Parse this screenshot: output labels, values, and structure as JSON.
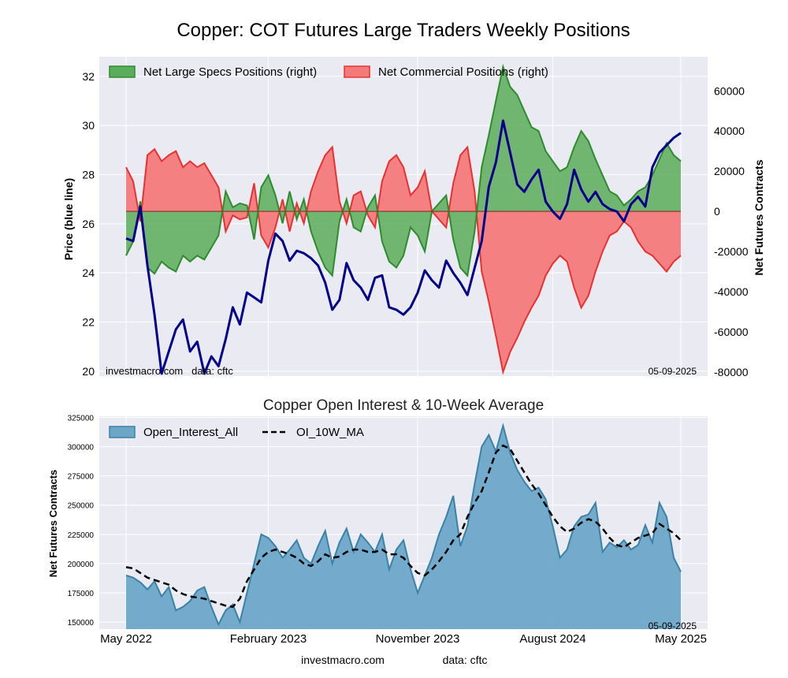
{
  "title": "Copper: COT Futures Large Traders Weekly Positions",
  "footer": {
    "left": "investmacro.com",
    "right": "data: cftc"
  },
  "colors": {
    "bg": "#eaeaf2",
    "grid": "#ffffff",
    "price": "#00008b",
    "specs_fill": "#5aad5a",
    "specs_line": "#2e8b2e",
    "comm_fill": "#f47a7a",
    "comm_line": "#e63232",
    "oi_fill": "#6ea6c8",
    "oi_line": "#3a82a6",
    "ma": "#000000"
  },
  "chart_data": [
    {
      "type": "line+area",
      "title": "Copper: COT Futures Large Traders Weekly Positions",
      "ylabel_left": "Price (blue line)",
      "ylabel_right": "Net Futures Contracts",
      "watermark": "investmacro.com   data: cftc",
      "date_label": "05-09-2025",
      "ylim_left": [
        19.8,
        32.8
      ],
      "ylim_right": [
        -82000,
        77000
      ],
      "yticks_left": [
        "20",
        "22",
        "24",
        "26",
        "28",
        "30",
        "32"
      ],
      "yticks_right": [
        "-80000",
        "-60000",
        "-40000",
        "-20000",
        "0",
        "20000",
        "40000",
        "60000"
      ],
      "legend": [
        "Net Large Specs Positions (right)",
        "Net Commercial Positions (right)"
      ],
      "legend_position": "top-left",
      "x": [
        0,
        2,
        4,
        6,
        8,
        10,
        12,
        14,
        16,
        18,
        20,
        22,
        24,
        26,
        28,
        30,
        32,
        34,
        36,
        38,
        40,
        42,
        44,
        46,
        48,
        50,
        52,
        54,
        56,
        58,
        60,
        62,
        64,
        66,
        68,
        70,
        72,
        74,
        76,
        78,
        80,
        82,
        84,
        86,
        88,
        90,
        92,
        94,
        96,
        98,
        100,
        102,
        104,
        106,
        108,
        110,
        112,
        114,
        116,
        118,
        120,
        122,
        124,
        126,
        128,
        130,
        132,
        134,
        136,
        138,
        140,
        142,
        144,
        146,
        148,
        150,
        152,
        154,
        156
      ],
      "series": [
        {
          "name": "Price",
          "axis": "left",
          "values": [
            25.4,
            25.3,
            26.7,
            24.3,
            22.3,
            19.9,
            20.8,
            21.7,
            22.1,
            20.8,
            21.2,
            19.9,
            20.6,
            20.2,
            21.3,
            22.6,
            21.9,
            23.2,
            23.0,
            22.8,
            24.5,
            25.6,
            25.3,
            24.5,
            24.9,
            24.8,
            24.6,
            24.3,
            23.6,
            22.5,
            22.9,
            24.4,
            23.7,
            23.4,
            22.9,
            23.8,
            23.9,
            22.6,
            22.5,
            22.3,
            22.6,
            23.2,
            24.1,
            23.7,
            23.4,
            24.5,
            24.0,
            23.6,
            23.1,
            24.2,
            25.3,
            27.5,
            28.5,
            30.2,
            28.9,
            27.6,
            27.3,
            27.8,
            28.2,
            26.9,
            26.5,
            26.2,
            26.8,
            28.2,
            27.4,
            26.9,
            27.3,
            26.8,
            26.6,
            26.5,
            26.1,
            26.8,
            27.1,
            26.7,
            28.3,
            28.9,
            29.2,
            29.5,
            29.7
          ],
          "note": "approximate"
        },
        {
          "name": "Net Large Specs Positions (right)",
          "axis": "right",
          "values": [
            -22000,
            -15000,
            5000,
            -28000,
            -31000,
            -25000,
            -28000,
            -30000,
            -22000,
            -25000,
            -22000,
            -24000,
            -18000,
            -12000,
            10000,
            2000,
            4000,
            3000,
            -14000,
            12000,
            18000,
            8000,
            -6000,
            10000,
            -4000,
            6000,
            -10000,
            -20000,
            -28000,
            -32000,
            -5000,
            6000,
            -8000,
            -10000,
            2000,
            8000,
            -15000,
            -25000,
            -28000,
            -22000,
            -8000,
            -12000,
            -20000,
            0,
            4000,
            8000,
            -14000,
            -28000,
            -32000,
            -10000,
            22000,
            38000,
            55000,
            72000,
            62000,
            58000,
            50000,
            42000,
            40000,
            30000,
            25000,
            20000,
            22000,
            32000,
            40000,
            35000,
            26000,
            18000,
            10000,
            8000,
            3000,
            6000,
            10000,
            12000,
            18000,
            26000,
            34000,
            28000,
            25000
          ],
          "note": "approximate"
        },
        {
          "name": "Net Commercial Positions (right)",
          "axis": "right",
          "values": [
            22000,
            15000,
            -5000,
            28000,
            31000,
            25000,
            28000,
            30000,
            22000,
            25000,
            22000,
            24000,
            18000,
            12000,
            -10000,
            -2000,
            -4000,
            -3000,
            14000,
            -12000,
            -18000,
            -8000,
            6000,
            -10000,
            4000,
            -6000,
            10000,
            20000,
            28000,
            32000,
            5000,
            -6000,
            8000,
            10000,
            -2000,
            -8000,
            15000,
            25000,
            28000,
            22000,
            8000,
            12000,
            20000,
            0,
            -4000,
            -8000,
            14000,
            28000,
            32000,
            10000,
            -30000,
            -45000,
            -62000,
            -80000,
            -70000,
            -63000,
            -55000,
            -48000,
            -42000,
            -32000,
            -26000,
            -22000,
            -25000,
            -38000,
            -48000,
            -42000,
            -30000,
            -20000,
            -12000,
            -10000,
            -5000,
            -8000,
            -15000,
            -20000,
            -22000,
            -26000,
            -30000,
            -25000,
            -22000
          ],
          "note": "approximate"
        }
      ]
    },
    {
      "type": "area+line",
      "title": "Copper Open Interest & 10-Week Average",
      "ylabel": "Net Futures Contracts",
      "date_label": "05-09-2025",
      "ylim": [
        144000,
        326000
      ],
      "yticks": [
        "150000",
        "175000",
        "200000",
        "225000",
        "250000",
        "275000",
        "300000",
        "325000"
      ],
      "xticks": [
        "May 2022",
        "February 2023",
        "November 2023",
        "August 2024",
        "May 2025"
      ],
      "xtick_positions": [
        0,
        40,
        82,
        120,
        156
      ],
      "legend": [
        "Open_Interest_All",
        "OI_10W_MA"
      ],
      "legend_position": "top-left",
      "x": [
        0,
        2,
        4,
        6,
        8,
        10,
        12,
        14,
        16,
        18,
        20,
        22,
        24,
        26,
        28,
        30,
        32,
        34,
        36,
        38,
        40,
        42,
        44,
        46,
        48,
        50,
        52,
        54,
        56,
        58,
        60,
        62,
        64,
        66,
        68,
        70,
        72,
        74,
        76,
        78,
        80,
        82,
        84,
        86,
        88,
        90,
        92,
        94,
        96,
        98,
        100,
        102,
        104,
        106,
        108,
        110,
        112,
        114,
        116,
        118,
        120,
        122,
        124,
        126,
        128,
        130,
        132,
        134,
        136,
        138,
        140,
        142,
        144,
        146,
        148,
        150,
        152,
        154,
        156
      ],
      "series": [
        {
          "name": "Open_Interest_All",
          "values": [
            190000,
            188000,
            184000,
            178000,
            185000,
            172000,
            180000,
            160000,
            163000,
            168000,
            177000,
            180000,
            163000,
            148000,
            160000,
            165000,
            150000,
            175000,
            200000,
            225000,
            222000,
            215000,
            205000,
            212000,
            220000,
            205000,
            200000,
            215000,
            228000,
            200000,
            218000,
            230000,
            210000,
            225000,
            218000,
            210000,
            225000,
            195000,
            212000,
            220000,
            195000,
            175000,
            190000,
            205000,
            225000,
            240000,
            258000,
            215000,
            232000,
            268000,
            300000,
            310000,
            296000,
            318000,
            295000,
            280000,
            270000,
            262000,
            265000,
            255000,
            232000,
            205000,
            212000,
            232000,
            240000,
            242000,
            252000,
            210000,
            218000,
            214000,
            220000,
            212000,
            216000,
            233000,
            218000,
            252000,
            240000,
            205000,
            193000
          ],
          "note": "approximate"
        },
        {
          "name": "OI_10W_MA",
          "style": "dashed",
          "values": [
            197000,
            196000,
            192000,
            188000,
            186000,
            184000,
            182000,
            177000,
            174000,
            172000,
            171000,
            170000,
            168000,
            166000,
            164000,
            163000,
            170000,
            185000,
            195000,
            205000,
            210000,
            212000,
            210000,
            208000,
            205000,
            200000,
            198000,
            202000,
            208000,
            205000,
            206000,
            210000,
            212000,
            212000,
            210000,
            210000,
            212000,
            208000,
            208000,
            205000,
            198000,
            192000,
            190000,
            195000,
            202000,
            210000,
            220000,
            225000,
            240000,
            252000,
            262000,
            278000,
            295000,
            301000,
            298000,
            288000,
            278000,
            268000,
            260000,
            250000,
            240000,
            232000,
            227000,
            230000,
            235000,
            238000,
            236000,
            230000,
            222000,
            216000,
            214000,
            218000,
            222000,
            224000,
            226000,
            234000,
            230000,
            226000,
            220000
          ],
          "note": "approximate"
        }
      ]
    }
  ]
}
